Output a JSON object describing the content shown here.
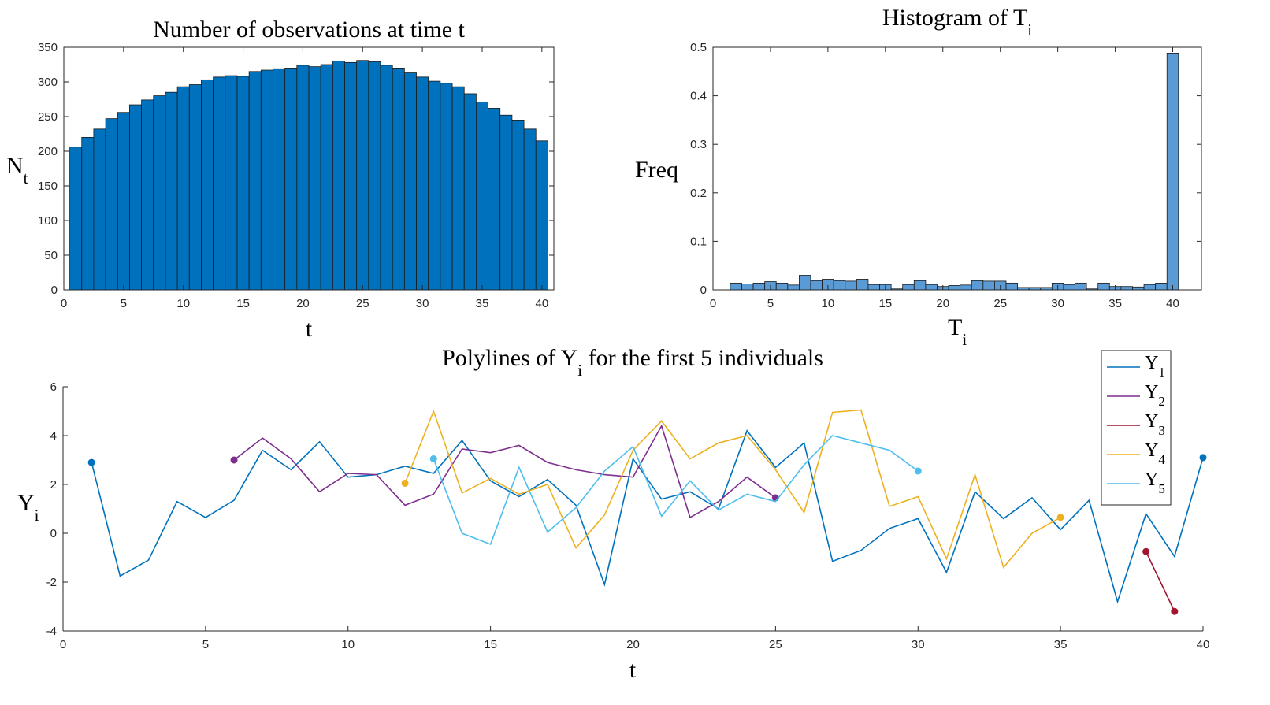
{
  "chart_data": [
    {
      "id": "nobs",
      "type": "bar",
      "title": "Number of observations at time t",
      "xlabel": "t",
      "ylabel_main": "N",
      "ylabel_sub": "t",
      "xlim": [
        0,
        41
      ],
      "ylim": [
        0,
        350
      ],
      "xticks": [
        0,
        5,
        10,
        15,
        20,
        25,
        30,
        35,
        40
      ],
      "yticks": [
        0,
        50,
        100,
        150,
        200,
        250,
        300,
        350
      ],
      "bar_color": "#0072BD",
      "categories": [
        1,
        2,
        3,
        4,
        5,
        6,
        7,
        8,
        9,
        10,
        11,
        12,
        13,
        14,
        15,
        16,
        17,
        18,
        19,
        20,
        21,
        22,
        23,
        24,
        25,
        26,
        27,
        28,
        29,
        30,
        31,
        32,
        33,
        34,
        35,
        36,
        37,
        38,
        39,
        40
      ],
      "values": [
        206,
        220,
        232,
        247,
        256,
        267,
        274,
        280,
        285,
        293,
        296,
        303,
        307,
        309,
        308,
        315,
        317,
        319,
        320,
        324,
        322,
        325,
        330,
        328,
        331,
        329,
        324,
        320,
        313,
        307,
        301,
        298,
        293,
        283,
        271,
        262,
        252,
        245,
        232,
        215
      ]
    },
    {
      "id": "hist",
      "type": "bar",
      "title_main": "Histogram of T",
      "title_sub": "i",
      "xlabel_main": "T",
      "xlabel_sub": "i",
      "ylabel": "Freq",
      "xlim": [
        0,
        42.5
      ],
      "ylim": [
        0,
        0.5
      ],
      "xticks": [
        0,
        5,
        10,
        15,
        20,
        25,
        30,
        35,
        40
      ],
      "yticks": [
        0,
        0.1,
        0.2,
        0.3,
        0.4,
        0.5
      ],
      "bar_color": "#5B9BD5",
      "categories": [
        2,
        3,
        4,
        5,
        6,
        7,
        8,
        9,
        10,
        11,
        12,
        13,
        14,
        15,
        16,
        17,
        18,
        19,
        20,
        21,
        22,
        23,
        24,
        25,
        26,
        27,
        28,
        29,
        30,
        31,
        32,
        33,
        34,
        35,
        36,
        37,
        38,
        39,
        40
      ],
      "values": [
        0.014,
        0.012,
        0.014,
        0.017,
        0.014,
        0.01,
        0.03,
        0.019,
        0.022,
        0.019,
        0.018,
        0.022,
        0.011,
        0.011,
        0.002,
        0.011,
        0.019,
        0.011,
        0.007,
        0.009,
        0.01,
        0.019,
        0.018,
        0.018,
        0.014,
        0.005,
        0.005,
        0.005,
        0.014,
        0.011,
        0.014,
        0.002,
        0.014,
        0.007,
        0.007,
        0.006,
        0.011,
        0.014,
        0.488
      ]
    },
    {
      "id": "poly",
      "type": "line",
      "title_main": "Polylines of Y",
      "title_sub": "i",
      "title_rest": " for the first 5 individuals",
      "xlabel": "t",
      "ylabel_main": "Y",
      "ylabel_sub": "i",
      "xlim": [
        0,
        40
      ],
      "ylim": [
        -4,
        6
      ],
      "xticks": [
        0,
        5,
        10,
        15,
        20,
        25,
        30,
        35,
        40
      ],
      "yticks": [
        -4,
        -2,
        0,
        2,
        4,
        6
      ],
      "legend_location": "top-right",
      "series": [
        {
          "name_main": "Y",
          "name_sub": "1",
          "color": "#0072BD",
          "x_start": 1,
          "values": [
            2.9,
            -1.75,
            -1.1,
            1.3,
            0.65,
            1.35,
            3.4,
            2.6,
            3.75,
            2.3,
            2.4,
            2.75,
            2.45,
            3.8,
            2.15,
            1.5,
            2.2,
            1.15,
            -2.1,
            3.05,
            1.4,
            1.7,
            1.0,
            4.2,
            2.7,
            3.7,
            -1.15,
            -0.7,
            0.2,
            0.6,
            -1.6,
            1.7,
            0.6,
            1.45,
            0.15,
            1.35,
            -2.8,
            0.8,
            -0.95,
            3.1
          ]
        },
        {
          "name_main": "Y",
          "name_sub": "2",
          "color": "#7E2F8E",
          "x_start": 6,
          "values": [
            3.0,
            3.9,
            3.05,
            1.7,
            2.45,
            2.4,
            1.15,
            1.6,
            3.45,
            3.3,
            3.6,
            2.9,
            2.6,
            2.4,
            2.3,
            4.4,
            0.65,
            1.3,
            2.3,
            1.45
          ]
        },
        {
          "name_main": "Y",
          "name_sub": "3",
          "color": "#A2142F",
          "x_start": 38,
          "values": [
            -0.75,
            -3.2
          ]
        },
        {
          "name_main": "Y",
          "name_sub": "4",
          "color": "#EDB120",
          "x_start": 12,
          "values": [
            2.05,
            5.0,
            1.65,
            2.25,
            1.6,
            2.0,
            -0.6,
            0.75,
            3.4,
            4.6,
            3.05,
            3.7,
            4.0,
            2.6,
            0.85,
            4.95,
            5.05,
            1.1,
            1.5,
            -1.05,
            2.4,
            -1.4,
            0.0,
            0.65
          ]
        },
        {
          "name_main": "Y",
          "name_sub": "5",
          "color": "#4DBEEE",
          "x_start": 13,
          "values": [
            3.05,
            0.0,
            -0.45,
            2.7,
            0.05,
            1.05,
            2.55,
            3.55,
            0.7,
            2.15,
            0.95,
            1.6,
            1.3,
            2.8,
            4.0,
            3.7,
            3.4,
            2.55
          ]
        }
      ]
    }
  ]
}
